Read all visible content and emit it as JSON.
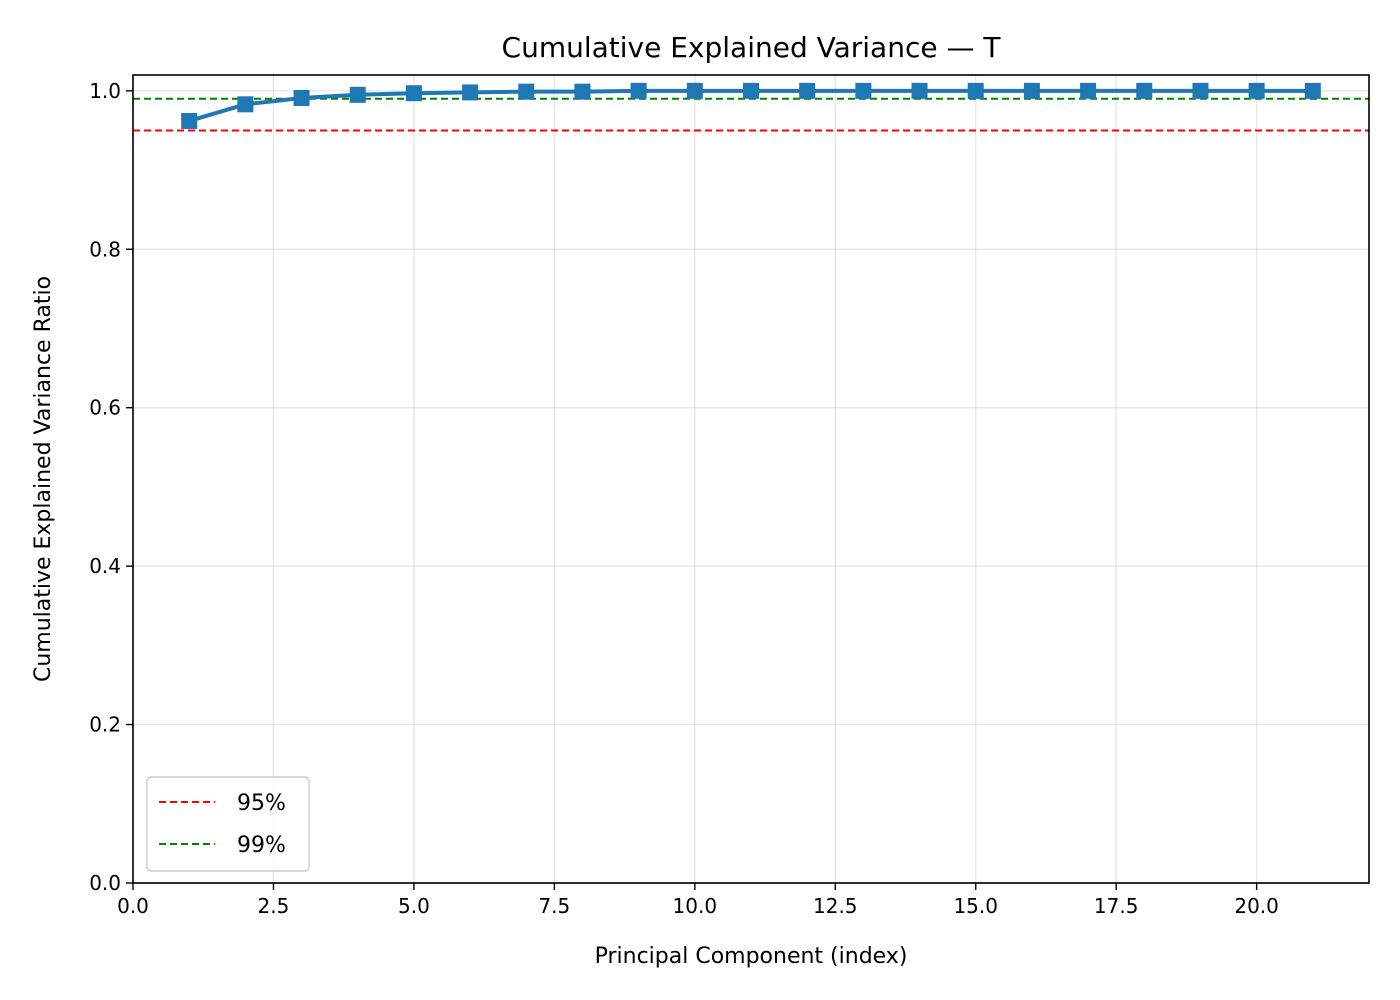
{
  "chart_data": {
    "type": "line",
    "title": "Cumulative Explained Variance — T",
    "xlabel": "Principal Component (index)",
    "ylabel": "Cumulative Explained Variance Ratio",
    "xlim": [
      0,
      22
    ],
    "ylim": [
      0,
      1.02
    ],
    "x_ticks": [
      0.0,
      2.5,
      5.0,
      7.5,
      10.0,
      12.5,
      15.0,
      17.5,
      20.0
    ],
    "x_tick_labels": [
      "0.0",
      "2.5",
      "5.0",
      "7.5",
      "10.0",
      "12.5",
      "15.0",
      "17.5",
      "20.0"
    ],
    "y_ticks": [
      0.0,
      0.2,
      0.4,
      0.6,
      0.8,
      1.0
    ],
    "y_tick_labels": [
      "0.0",
      "0.2",
      "0.4",
      "0.6",
      "0.8",
      "1.0"
    ],
    "grid": true,
    "series": [
      {
        "marker": "square",
        "color": "#1f77b4",
        "x": [
          1,
          2,
          3,
          4,
          5,
          6,
          7,
          8,
          9,
          10,
          11,
          12,
          13,
          14,
          15,
          16,
          17,
          18,
          19,
          20,
          21
        ],
        "values": [
          0.962,
          0.983,
          0.991,
          0.995,
          0.997,
          0.998,
          0.999,
          0.999,
          1.0,
          1.0,
          1.0,
          1.0,
          1.0,
          1.0,
          1.0,
          1.0,
          1.0,
          1.0,
          1.0,
          1.0,
          1.0
        ]
      }
    ],
    "reference_lines": [
      {
        "name": "95%",
        "y": 0.95,
        "color": "#ff0000",
        "style": "dashed"
      },
      {
        "name": "99%",
        "y": 0.99,
        "color": "#008000",
        "style": "dashed"
      }
    ],
    "legend": {
      "placement": "lower-left",
      "entries": [
        "95%",
        "99%"
      ]
    }
  }
}
